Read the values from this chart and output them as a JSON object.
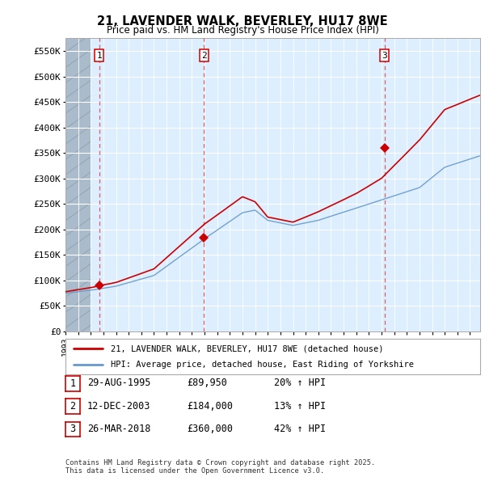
{
  "title_line1": "21, LAVENDER WALK, BEVERLEY, HU17 8WE",
  "title_line2": "Price paid vs. HM Land Registry's House Price Index (HPI)",
  "ylim": [
    0,
    575000
  ],
  "yticks": [
    0,
    50000,
    100000,
    150000,
    200000,
    250000,
    300000,
    350000,
    400000,
    450000,
    500000,
    550000
  ],
  "ytick_labels": [
    "£0",
    "£50K",
    "£100K",
    "£150K",
    "£200K",
    "£250K",
    "£300K",
    "£350K",
    "£400K",
    "£450K",
    "£500K",
    "£550K"
  ],
  "xlim_start": 1993.0,
  "xlim_end": 2025.8,
  "background_color": "#ffffff",
  "plot_bg_color": "#ddeeff",
  "grid_color": "#ffffff",
  "hatch_color": "#aabbcc",
  "sale_color": "#cc0000",
  "hpi_color": "#6699cc",
  "purchases": [
    {
      "date_num": 1995.66,
      "price": 89950,
      "label": "1"
    },
    {
      "date_num": 2003.95,
      "price": 184000,
      "label": "2"
    },
    {
      "date_num": 2018.23,
      "price": 360000,
      "label": "3"
    }
  ],
  "legend_sale_label": "21, LAVENDER WALK, BEVERLEY, HU17 8WE (detached house)",
  "legend_hpi_label": "HPI: Average price, detached house, East Riding of Yorkshire",
  "table_rows": [
    {
      "num": "1",
      "date": "29-AUG-1995",
      "price": "£89,950",
      "change": "20% ↑ HPI"
    },
    {
      "num": "2",
      "date": "12-DEC-2003",
      "price": "£184,000",
      "change": "13% ↑ HPI"
    },
    {
      "num": "3",
      "date": "26-MAR-2018",
      "price": "£360,000",
      "change": "42% ↑ HPI"
    }
  ],
  "footer": "Contains HM Land Registry data © Crown copyright and database right 2025.\nThis data is licensed under the Open Government Licence v3.0.",
  "vline_color": "#dd4444",
  "num_box_color": "#cc0000"
}
